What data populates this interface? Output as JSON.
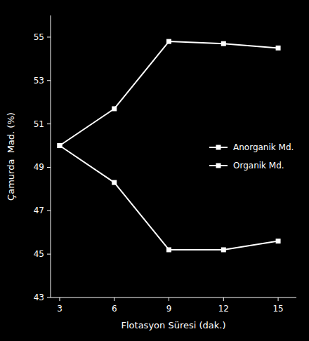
{
  "chart_data": {
    "type": "line",
    "x": [
      3,
      6,
      9,
      12,
      15
    ],
    "series": [
      {
        "name": "Anorganik Md.",
        "color": "#ffffff",
        "marker": "square",
        "values": [
          50.0,
          51.7,
          54.8,
          54.7,
          54.5
        ]
      },
      {
        "name": "Organik Md.",
        "color": "#ffffff",
        "marker": "square",
        "values": [
          50.0,
          48.3,
          45.2,
          45.2,
          45.6
        ]
      }
    ],
    "x_label": "Flotasyon Süresi (dak.)",
    "y_label": "Çamurda  Mad. (%)",
    "xlim": [
      2.5,
      16
    ],
    "ylim": [
      43,
      56
    ],
    "xticks": [
      3,
      6,
      9,
      12,
      15
    ],
    "yticks": [
      43,
      45,
      47,
      49,
      51,
      53,
      55
    ],
    "grid": false,
    "legend": "right"
  }
}
